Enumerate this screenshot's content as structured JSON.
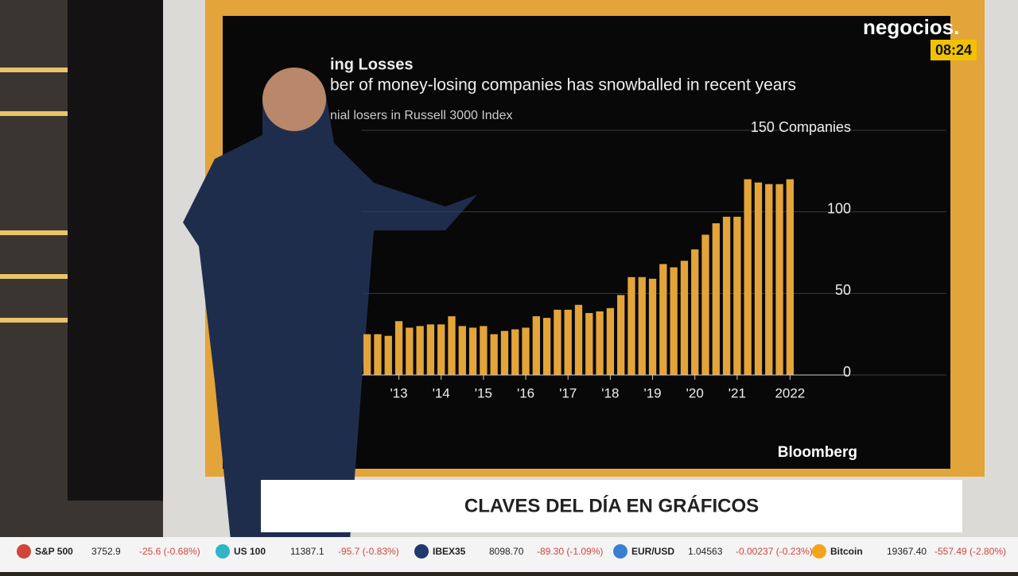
{
  "brand": {
    "logo": "negocios.",
    "time": "08:24"
  },
  "banner": {
    "title": "CLAVES DEL DÍA EN GRÁFICOS"
  },
  "ticker": {
    "items": [
      {
        "name": "S&P 500",
        "price": "3752.9",
        "change": "-25.6 (-0.68%)"
      },
      {
        "name": "US 100",
        "price": "11387.1",
        "change": "-95.7 (-0.83%)"
      },
      {
        "name": "IBEX35",
        "price": "8098.70",
        "change": "-89.30 (-1.09%)"
      },
      {
        "name": "EUR/USD",
        "price": "1.04563",
        "change": "-0.00237 (-0.23%)"
      },
      {
        "name": "Bitcoin",
        "price": "19367.40",
        "change": "-557.49 (-2.80%)"
      }
    ]
  },
  "chart_data": {
    "type": "bar",
    "title": "ing Losses",
    "subtitle": "ber of money-losing companies has snowballed in recent years",
    "axis_label": "nial losers in Russell 3000 Index",
    "source": "Bloomberg",
    "color": "#e3a43a",
    "categories": [
      null,
      null,
      null,
      "'13",
      null,
      null,
      null,
      "'14",
      null,
      null,
      null,
      "'15",
      null,
      null,
      null,
      "'16",
      null,
      null,
      null,
      "'17",
      null,
      null,
      null,
      "'18",
      null,
      null,
      null,
      "'19",
      null,
      null,
      null,
      "'20",
      null,
      null,
      null,
      "'21",
      null,
      null,
      null,
      null,
      "2022"
    ],
    "values": [
      25,
      25,
      24,
      33,
      29,
      30,
      31,
      31,
      36,
      30,
      29,
      30,
      25,
      27,
      28,
      29,
      36,
      35,
      40,
      40,
      43,
      38,
      39,
      41,
      49,
      60,
      60,
      59,
      68,
      66,
      70,
      77,
      86,
      93,
      97,
      97,
      120,
      118,
      117,
      117,
      120
    ],
    "ylim": [
      0,
      150
    ],
    "yticks": [
      0,
      50,
      100,
      {
        "value": 150,
        "label": "150 Companies"
      }
    ]
  }
}
